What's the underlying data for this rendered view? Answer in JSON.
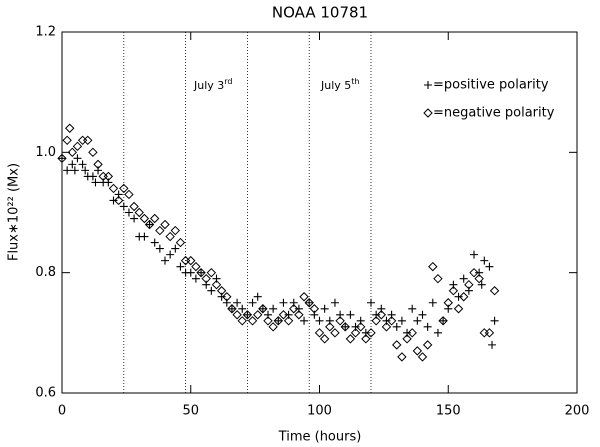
{
  "chart_data": {
    "type": "scatter",
    "title": "NOAA 10781",
    "xlabel": "Time (hours)",
    "ylabel": "Flux∗10²² (Mx)",
    "annotations": [
      {
        "text": "July 3",
        "sup": "rd"
      },
      {
        "text": "July 5",
        "sup": "th"
      }
    ],
    "vlines": [
      24,
      48,
      72,
      96,
      120
    ],
    "xlim": [
      0,
      200
    ],
    "xticks": [
      0,
      50,
      100,
      150,
      200
    ],
    "ylim": [
      0.6,
      1.2
    ],
    "yticks": [
      0.6,
      0.8,
      {
        "value": 1,
        "label": "1.0"
      },
      1.2
    ],
    "legend": "upper right",
    "series": [
      {
        "name": "=positive polarity",
        "marker": "plus",
        "color": "#000000",
        "x": [
          0,
          2,
          4,
          5,
          6,
          8,
          9,
          10,
          12,
          13,
          14,
          16,
          18,
          20,
          22,
          24,
          26,
          28,
          30,
          32,
          34,
          36,
          38,
          40,
          42,
          44,
          46,
          48,
          50,
          52,
          54,
          56,
          58,
          60,
          62,
          64,
          66,
          68,
          70,
          72,
          74,
          76,
          78,
          80,
          82,
          84,
          86,
          88,
          90,
          92,
          94,
          96,
          98,
          100,
          102,
          104,
          106,
          108,
          110,
          112,
          114,
          116,
          118,
          120,
          122,
          124,
          126,
          128,
          130,
          132,
          134,
          136,
          138,
          140,
          142,
          144,
          146,
          148,
          150,
          152,
          154,
          156,
          158,
          160,
          162,
          163,
          164,
          166,
          167,
          168
        ],
        "values": [
          0.99,
          0.97,
          0.98,
          0.97,
          0.99,
          0.98,
          0.97,
          0.96,
          0.96,
          0.95,
          0.97,
          0.95,
          0.95,
          0.92,
          0.93,
          0.91,
          0.9,
          0.89,
          0.86,
          0.86,
          0.88,
          0.85,
          0.84,
          0.82,
          0.83,
          0.84,
          0.81,
          0.8,
          0.8,
          0.79,
          0.8,
          0.78,
          0.77,
          0.79,
          0.76,
          0.75,
          0.74,
          0.75,
          0.74,
          0.73,
          0.75,
          0.76,
          0.74,
          0.73,
          0.74,
          0.72,
          0.75,
          0.73,
          0.75,
          0.74,
          0.72,
          0.75,
          0.73,
          0.72,
          0.74,
          0.72,
          0.75,
          0.73,
          0.71,
          0.73,
          0.71,
          0.72,
          0.7,
          0.75,
          0.73,
          0.74,
          0.72,
          0.73,
          0.71,
          0.72,
          0.7,
          0.74,
          0.72,
          0.73,
          0.71,
          0.75,
          0.7,
          0.72,
          0.74,
          0.78,
          0.76,
          0.79,
          0.77,
          0.83,
          0.8,
          0.78,
          0.82,
          0.81,
          0.68,
          0.72
        ]
      },
      {
        "name": "=negative polarity",
        "marker": "diamond",
        "color": "#000000",
        "x": [
          0,
          2,
          3,
          4,
          6,
          8,
          10,
          12,
          14,
          16,
          18,
          20,
          22,
          24,
          26,
          28,
          30,
          32,
          34,
          36,
          38,
          40,
          42,
          44,
          46,
          48,
          50,
          52,
          54,
          56,
          58,
          60,
          62,
          64,
          66,
          68,
          70,
          72,
          74,
          76,
          78,
          80,
          82,
          84,
          86,
          88,
          90,
          92,
          94,
          96,
          98,
          100,
          102,
          104,
          106,
          108,
          110,
          112,
          114,
          116,
          118,
          120,
          122,
          124,
          126,
          128,
          130,
          132,
          134,
          136,
          138,
          140,
          142,
          144,
          146,
          148,
          150,
          152,
          154,
          156,
          158,
          160,
          162,
          164,
          166,
          168
        ],
        "values": [
          0.99,
          1.02,
          1.04,
          1.0,
          1.01,
          1.02,
          1.02,
          1.0,
          0.98,
          0.96,
          0.96,
          0.94,
          0.92,
          0.94,
          0.93,
          0.91,
          0.9,
          0.89,
          0.88,
          0.89,
          0.87,
          0.88,
          0.86,
          0.87,
          0.85,
          0.82,
          0.82,
          0.81,
          0.8,
          0.79,
          0.8,
          0.78,
          0.77,
          0.76,
          0.74,
          0.73,
          0.72,
          0.73,
          0.72,
          0.73,
          0.74,
          0.72,
          0.71,
          0.72,
          0.73,
          0.72,
          0.74,
          0.73,
          0.76,
          0.75,
          0.74,
          0.7,
          0.69,
          0.71,
          0.7,
          0.72,
          0.71,
          0.69,
          0.7,
          0.71,
          0.69,
          0.7,
          0.72,
          0.73,
          0.71,
          0.72,
          0.68,
          0.66,
          0.69,
          0.7,
          0.67,
          0.66,
          0.68,
          0.81,
          0.79,
          0.72,
          0.75,
          0.77,
          0.74,
          0.76,
          0.78,
          0.8,
          0.79,
          0.7,
          0.7,
          0.77
        ]
      }
    ]
  }
}
